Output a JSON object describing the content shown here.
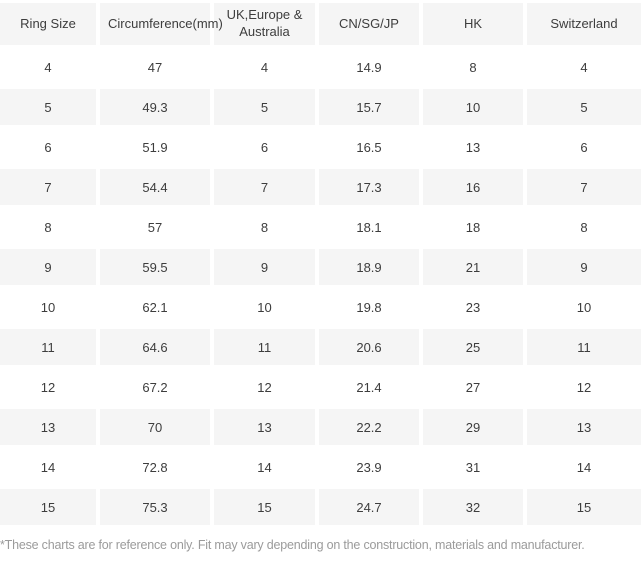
{
  "chart_data": {
    "type": "table",
    "columns": [
      "Ring Size",
      "Circumference(mm)",
      "UK,Europe & Australia",
      "CN/SG/JP",
      "HK",
      "Switzerland"
    ],
    "rows": [
      [
        "4",
        "47",
        "4",
        "14.9",
        "8",
        "4"
      ],
      [
        "5",
        "49.3",
        "5",
        "15.7",
        "10",
        "5"
      ],
      [
        "6",
        "51.9",
        "6",
        "16.5",
        "13",
        "6"
      ],
      [
        "7",
        "54.4",
        "7",
        "17.3",
        "16",
        "7"
      ],
      [
        "8",
        "57",
        "8",
        "18.1",
        "18",
        "8"
      ],
      [
        "9",
        "59.5",
        "9",
        "18.9",
        "21",
        "9"
      ],
      [
        "10",
        "62.1",
        "10",
        "19.8",
        "23",
        "10"
      ],
      [
        "11",
        "64.6",
        "11",
        "20.6",
        "25",
        "11"
      ],
      [
        "12",
        "67.2",
        "12",
        "21.4",
        "27",
        "12"
      ],
      [
        "13",
        "70",
        "13",
        "22.2",
        "29",
        "13"
      ],
      [
        "14",
        "72.8",
        "14",
        "23.9",
        "31",
        "14"
      ],
      [
        "15",
        "75.3",
        "15",
        "24.7",
        "32",
        "15"
      ]
    ],
    "layout": {
      "stripe_color": "#f5f5f5",
      "header_background": "#f5f5f5",
      "text_color": "#3d3d3d",
      "footnote_color": "#9b9b9b",
      "gridlines": "white 4px gutters between cells"
    }
  },
  "footnote": "*These charts are for reference only. Fit may vary depending on the construction, materials and manufacturer."
}
